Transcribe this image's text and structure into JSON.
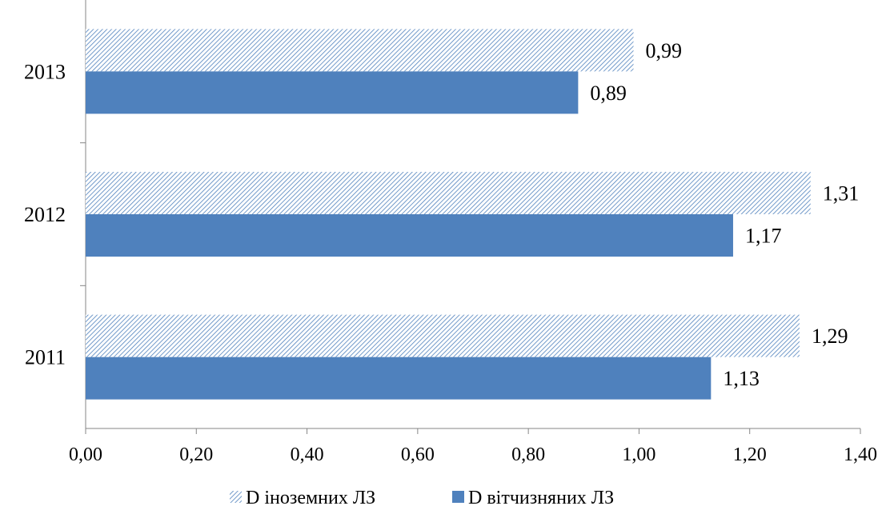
{
  "chart_data": {
    "type": "bar",
    "orientation": "horizontal",
    "categories": [
      "2011",
      "2012",
      "2013"
    ],
    "series": [
      {
        "name": "D іноземних ЛЗ",
        "values": [
          1.29,
          1.31,
          0.99
        ],
        "labels": [
          "1,29",
          "1,31",
          "0,99"
        ],
        "fill": "hatched",
        "color": "#4F81BD"
      },
      {
        "name": "D вітчизняних ЛЗ",
        "values": [
          1.13,
          1.17,
          0.89
        ],
        "labels": [
          "1,13",
          "1,17",
          "0,89"
        ],
        "fill": "solid",
        "color": "#4F81BD"
      }
    ],
    "xlim": [
      0,
      1.4
    ],
    "xticks": [
      0,
      0.2,
      0.4,
      0.6,
      0.8,
      1.0,
      1.2,
      1.4
    ],
    "xtick_labels": [
      "0,00",
      "0,20",
      "0,40",
      "0,60",
      "0,80",
      "1,00",
      "1,20",
      "1,40"
    ],
    "title": "",
    "xlabel": "",
    "ylabel": "",
    "grid": false,
    "legend_position": "bottom"
  }
}
